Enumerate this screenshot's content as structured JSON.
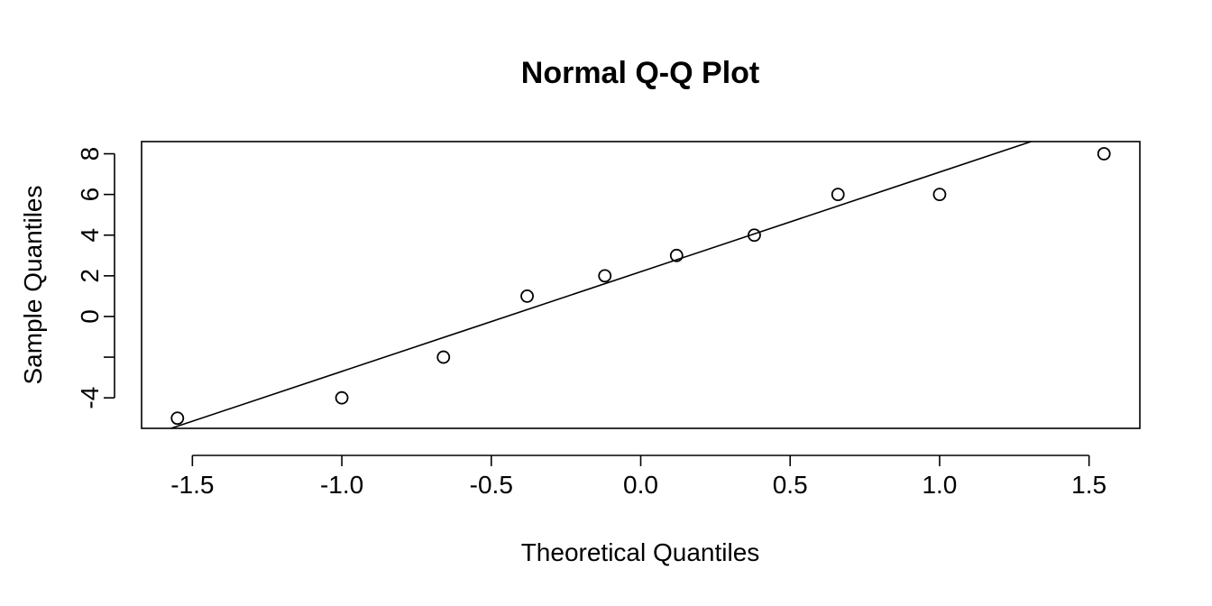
{
  "chart_data": {
    "type": "scatter",
    "title": "Normal Q-Q Plot",
    "xlabel": "Theoretical Quantiles",
    "ylabel": "Sample Quantiles",
    "xlim": [
      -1.67,
      1.67
    ],
    "ylim": [
      -5.5,
      8.6
    ],
    "x_ticks": [
      -1.5,
      -1.0,
      -0.5,
      0.0,
      0.5,
      1.0,
      1.5
    ],
    "x_tick_labels": [
      "-1.5",
      "-1.0",
      "-0.5",
      "0.0",
      "0.5",
      "1.0",
      "1.5"
    ],
    "y_ticks": [
      -4,
      -2,
      0,
      2,
      4,
      6,
      8
    ],
    "y_tick_labels": [
      "-4",
      "",
      "0",
      "2",
      "4",
      "6",
      "8"
    ],
    "points": {
      "x": [
        -1.55,
        -1.0,
        -0.66,
        -0.38,
        -0.12,
        0.12,
        0.38,
        0.66,
        1.0,
        1.55
      ],
      "y": [
        -5,
        -4,
        -2,
        1,
        2,
        3,
        4,
        6,
        6,
        8
      ]
    },
    "reference_line": {
      "slope": 4.9,
      "intercept": 2.2
    },
    "grid": false,
    "legend": "none",
    "colors": {
      "points": "#000000",
      "line": "#000000",
      "axes": "#000000"
    }
  }
}
